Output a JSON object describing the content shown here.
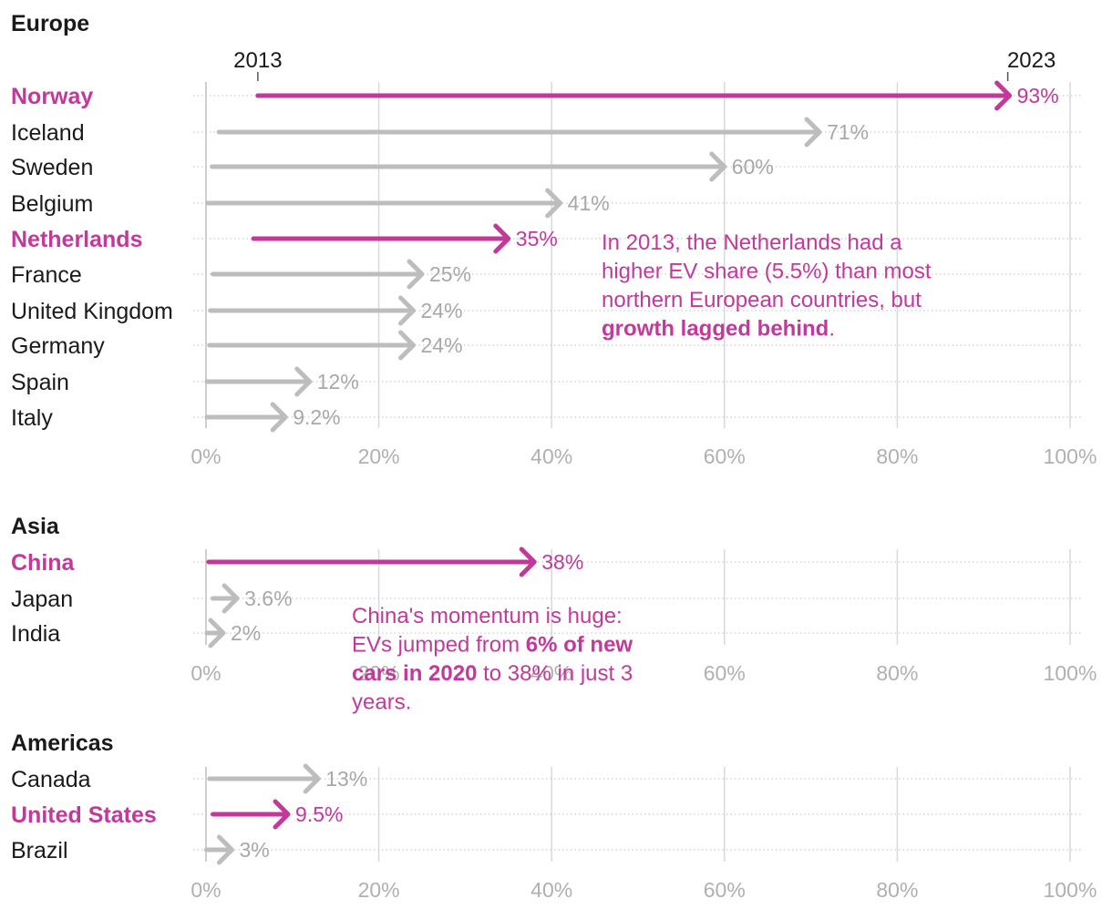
{
  "colors": {
    "highlight": "#c2399b",
    "base": "#bdbdbd",
    "label_gray": "#a8a8a8",
    "text": "#1a1a1a",
    "grid": "#d9d9d9"
  },
  "chart_data": {
    "type": "arrow",
    "description_units": "EV share of new car sales (%)",
    "start_year_label": "2013",
    "end_year_label": "2023",
    "xlim": [
      0,
      100
    ],
    "x_ticks": [
      "0%",
      "20%",
      "40%",
      "60%",
      "80%",
      "100%"
    ],
    "panels": [
      {
        "title": "Europe",
        "rows": [
          {
            "name": "Norway",
            "start": 6,
            "end": 93,
            "label": "93%",
            "highlight": true
          },
          {
            "name": "Iceland",
            "start": 1.5,
            "end": 71,
            "label": "71%",
            "highlight": false
          },
          {
            "name": "Sweden",
            "start": 0.7,
            "end": 60,
            "label": "60%",
            "highlight": false
          },
          {
            "name": "Belgium",
            "start": 0.2,
            "end": 41,
            "label": "41%",
            "highlight": false
          },
          {
            "name": "Netherlands",
            "start": 5.5,
            "end": 35,
            "label": "35%",
            "highlight": true
          },
          {
            "name": "France",
            "start": 0.8,
            "end": 25,
            "label": "25%",
            "highlight": false
          },
          {
            "name": "United Kingdom",
            "start": 0.5,
            "end": 24,
            "label": "24%",
            "highlight": false
          },
          {
            "name": "Germany",
            "start": 0.4,
            "end": 24,
            "label": "24%",
            "highlight": false
          },
          {
            "name": "Spain",
            "start": 0.1,
            "end": 12,
            "label": "12%",
            "highlight": false
          },
          {
            "name": "Italy",
            "start": 0.1,
            "end": 9.2,
            "label": "9.2%",
            "highlight": false
          }
        ]
      },
      {
        "title": "Asia",
        "rows": [
          {
            "name": "China",
            "start": 0.3,
            "end": 38,
            "label": "38%",
            "highlight": true
          },
          {
            "name": "Japan",
            "start": 0.8,
            "end": 3.6,
            "label": "3.6%",
            "highlight": false
          },
          {
            "name": "India",
            "start": 0.1,
            "end": 2,
            "label": "2%",
            "highlight": false
          }
        ]
      },
      {
        "title": "Americas",
        "rows": [
          {
            "name": "Canada",
            "start": 0.4,
            "end": 13,
            "label": "13%",
            "highlight": false
          },
          {
            "name": "United States",
            "start": 0.8,
            "end": 9.5,
            "label": "9.5%",
            "highlight": true
          },
          {
            "name": "Brazil",
            "start": 0.05,
            "end": 3,
            "label": "3%",
            "highlight": false
          }
        ]
      }
    ],
    "annotations": [
      {
        "panel": "Europe",
        "lines": [
          [
            {
              "text": "In 2013, the Netherlands had a",
              "bold": false
            }
          ],
          [
            {
              "text": "higher EV share (5.5%) than most",
              "bold": false
            }
          ],
          [
            {
              "text": "northern European countries, but",
              "bold": false
            }
          ],
          [
            {
              "text": "growth lagged behind",
              "bold": true
            },
            {
              "text": ".",
              "bold": false
            }
          ]
        ]
      },
      {
        "panel": "Asia",
        "lines": [
          [
            {
              "text": "China's momentum is huge:",
              "bold": false
            }
          ],
          [
            {
              "text": "EVs jumped from ",
              "bold": false
            },
            {
              "text": "6% of new",
              "bold": true
            }
          ],
          [
            {
              "text": "cars in 2020",
              "bold": true
            },
            {
              "text": " to 38% in just 3",
              "bold": false
            }
          ],
          [
            {
              "text": "years.",
              "bold": false
            }
          ]
        ]
      }
    ]
  }
}
